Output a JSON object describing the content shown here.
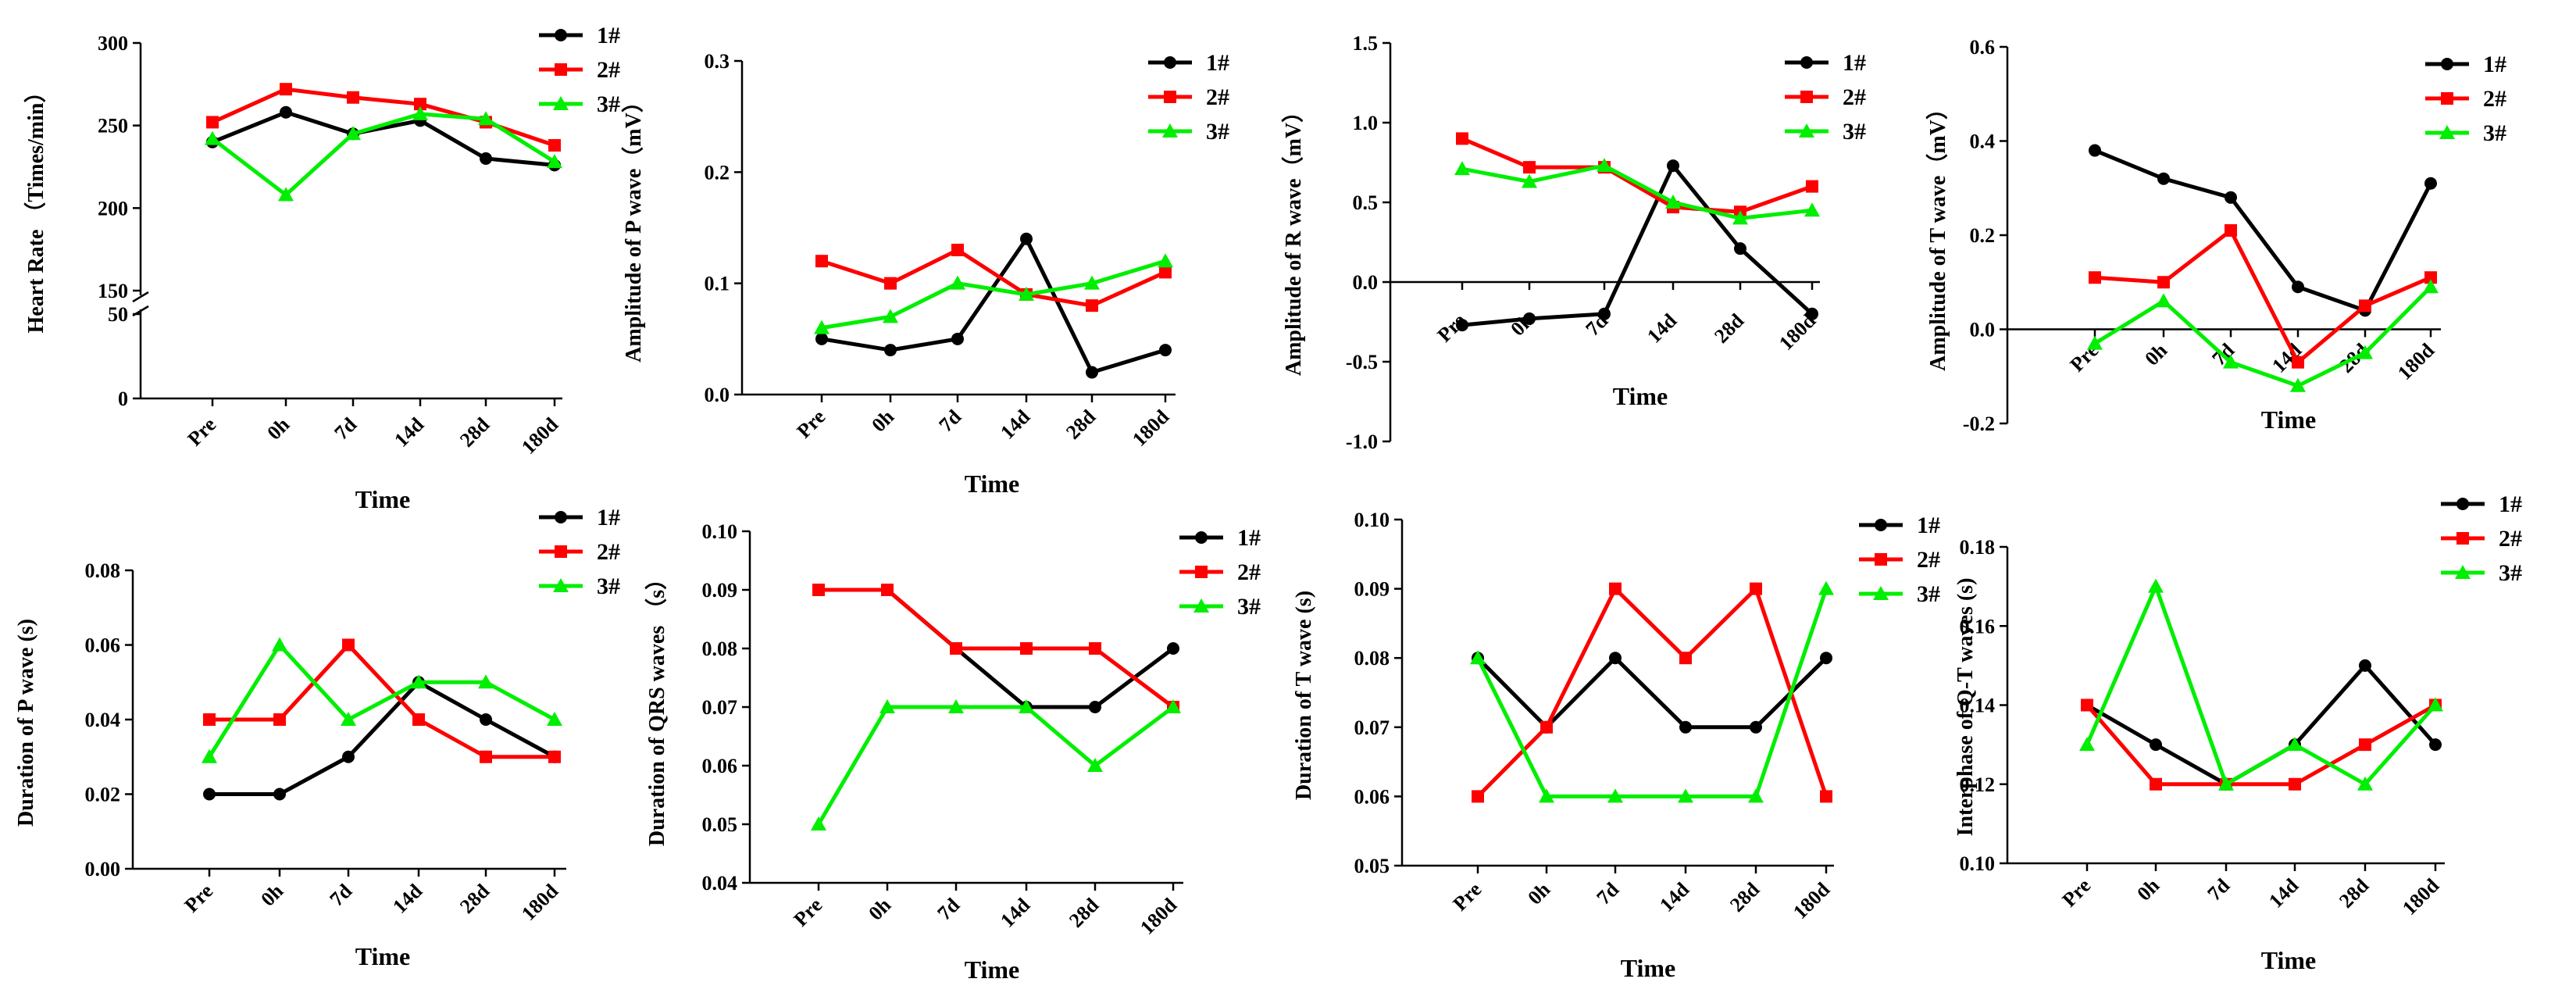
{
  "colors": {
    "s1": "#000000",
    "s2": "#ff0000",
    "s3": "#00ee00"
  },
  "chart_data": [
    {
      "type": "line",
      "id": "hr",
      "categories": [
        "Pre",
        "0h",
        "7d",
        "14d",
        "28d",
        "180d"
      ],
      "xlabel": "Time",
      "ylabel": "Heart Rate （Times/min）",
      "yticks": [
        "0",
        "50",
        "150",
        "200",
        "250",
        "300"
      ],
      "axis_break": [
        50,
        150
      ],
      "series": [
        {
          "name": "1#",
          "values": [
            240,
            258,
            245,
            253,
            230,
            226
          ]
        },
        {
          "name": "2#",
          "values": [
            252,
            272,
            267,
            263,
            252,
            238
          ]
        },
        {
          "name": "3#",
          "values": [
            242,
            208,
            245,
            257,
            254,
            228
          ]
        }
      ]
    },
    {
      "type": "line",
      "id": "pamp",
      "categories": [
        "Pre",
        "0h",
        "7d",
        "14d",
        "28d",
        "180d"
      ],
      "xlabel": "Time",
      "ylabel": "Amplitude of P wave（mV）",
      "ylim": [
        0,
        0.3
      ],
      "yticks": [
        "0.0",
        "0.1",
        "0.2",
        "0.3"
      ],
      "series": [
        {
          "name": "1#",
          "values": [
            0.05,
            0.04,
            0.05,
            0.14,
            0.02,
            0.04
          ]
        },
        {
          "name": "2#",
          "values": [
            0.12,
            0.1,
            0.13,
            0.09,
            0.08,
            0.11
          ]
        },
        {
          "name": "3#",
          "values": [
            0.06,
            0.07,
            0.1,
            0.09,
            0.1,
            0.12
          ]
        }
      ]
    },
    {
      "type": "line",
      "id": "ramp",
      "categories": [
        "Pre",
        "0h",
        "7d",
        "14d",
        "28d",
        "180d"
      ],
      "xlabel": "Time",
      "ylabel": "Amplitude of R wave（mV）",
      "ylim": [
        -1.0,
        1.5
      ],
      "yticks": [
        "-1.0",
        "-0.5",
        "0.0",
        "0.5",
        "1.0",
        "1.5"
      ],
      "series": [
        {
          "name": "1#",
          "values": [
            -0.27,
            -0.23,
            -0.2,
            0.73,
            0.21,
            -0.2
          ]
        },
        {
          "name": "2#",
          "values": [
            0.9,
            0.72,
            0.72,
            0.47,
            0.44,
            0.6
          ]
        },
        {
          "name": "3#",
          "values": [
            0.71,
            0.63,
            0.73,
            0.5,
            0.4,
            0.45
          ]
        }
      ]
    },
    {
      "type": "line",
      "id": "tamp",
      "categories": [
        "Pre",
        "0h",
        "7d",
        "14d",
        "28d",
        "180d"
      ],
      "xlabel": "Time",
      "ylabel": "Amplitude of T wave（mV）",
      "ylim": [
        -0.2,
        0.6
      ],
      "yticks": [
        "-0.2",
        "0.0",
        "0.2",
        "0.4",
        "0.6"
      ],
      "series": [
        {
          "name": "1#",
          "values": [
            0.38,
            0.32,
            0.28,
            0.09,
            0.04,
            0.31
          ]
        },
        {
          "name": "2#",
          "values": [
            0.11,
            0.1,
            0.21,
            -0.07,
            0.05,
            0.11
          ]
        },
        {
          "name": "3#",
          "values": [
            -0.03,
            0.06,
            -0.07,
            -0.12,
            -0.05,
            0.09
          ]
        }
      ]
    },
    {
      "type": "line",
      "id": "pdur",
      "categories": [
        "Pre",
        "0h",
        "7d",
        "14d",
        "28d",
        "180d"
      ],
      "xlabel": "Time",
      "ylabel": "Duration of P wave (s)",
      "ylim": [
        0,
        0.08
      ],
      "yticks": [
        "0.00",
        "0.02",
        "0.04",
        "0.06",
        "0.08"
      ],
      "series": [
        {
          "name": "1#",
          "values": [
            0.02,
            0.02,
            0.03,
            0.05,
            0.04,
            0.03
          ]
        },
        {
          "name": "2#",
          "values": [
            0.04,
            0.04,
            0.06,
            0.04,
            0.03,
            0.03
          ]
        },
        {
          "name": "3#",
          "values": [
            0.03,
            0.06,
            0.04,
            0.05,
            0.05,
            0.04
          ]
        }
      ]
    },
    {
      "type": "line",
      "id": "qrs",
      "categories": [
        "Pre",
        "0h",
        "7d",
        "14d",
        "28d",
        "180d"
      ],
      "xlabel": "Time",
      "ylabel": "Duration of QRS waves （s）",
      "ylim": [
        0.04,
        0.1
      ],
      "yticks": [
        "0.04",
        "0.05",
        "0.06",
        "0.07",
        "0.08",
        "0.09",
        "0.10"
      ],
      "series": [
        {
          "name": "1#",
          "values": [
            0.09,
            0.09,
            0.08,
            0.07,
            0.07,
            0.08
          ]
        },
        {
          "name": "2#",
          "values": [
            0.09,
            0.09,
            0.08,
            0.08,
            0.08,
            0.07
          ]
        },
        {
          "name": "3#",
          "values": [
            0.05,
            0.07,
            0.07,
            0.07,
            0.06,
            0.07
          ]
        }
      ]
    },
    {
      "type": "line",
      "id": "tdur",
      "categories": [
        "Pre",
        "0h",
        "7d",
        "14d",
        "28d",
        "180d"
      ],
      "xlabel": "Time",
      "ylabel": "Duration of T wave (s)",
      "ylim": [
        0.05,
        0.1
      ],
      "yticks": [
        "0.05",
        "0.06",
        "0.07",
        "0.08",
        "0.09",
        "0.10"
      ],
      "series": [
        {
          "name": "1#",
          "values": [
            0.08,
            0.07,
            0.08,
            0.07,
            0.07,
            0.08
          ]
        },
        {
          "name": "2#",
          "values": [
            0.06,
            0.07,
            0.09,
            0.08,
            0.09,
            0.06
          ]
        },
        {
          "name": "3#",
          "values": [
            0.08,
            0.06,
            0.06,
            0.06,
            0.06,
            0.09
          ]
        }
      ]
    },
    {
      "type": "line",
      "id": "qt",
      "categories": [
        "Pre",
        "0h",
        "7d",
        "14d",
        "28d",
        "180d"
      ],
      "xlabel": "Time",
      "ylabel": "Interphase of Q-T waves (s)",
      "ylim": [
        0.1,
        0.18
      ],
      "yticks": [
        "0.10",
        "0.12",
        "0.14",
        "0.16",
        "0.18"
      ],
      "series": [
        {
          "name": "1#",
          "values": [
            0.14,
            0.13,
            0.12,
            0.13,
            0.15,
            0.13
          ]
        },
        {
          "name": "2#",
          "values": [
            0.14,
            0.12,
            0.12,
            0.12,
            0.13,
            0.14
          ]
        },
        {
          "name": "3#",
          "values": [
            0.13,
            0.17,
            0.12,
            0.13,
            0.12,
            0.14
          ]
        }
      ]
    }
  ]
}
